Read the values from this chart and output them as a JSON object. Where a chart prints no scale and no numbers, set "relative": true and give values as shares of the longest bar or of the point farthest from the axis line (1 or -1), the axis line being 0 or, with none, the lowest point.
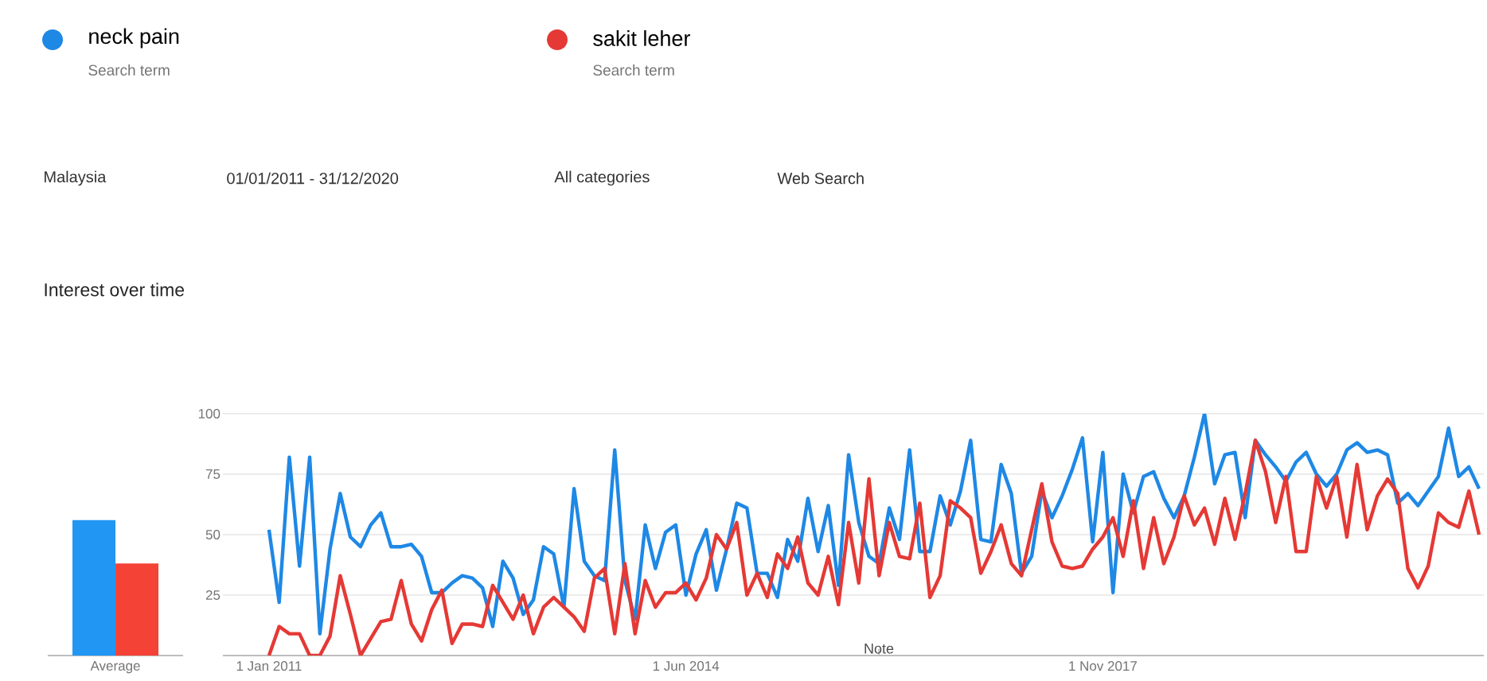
{
  "chart_data": [
    {
      "type": "bar",
      "categories": [
        "Average"
      ],
      "relative": true,
      "series": [
        {
          "color": "#2196f3",
          "values": [
            1
          ]
        },
        {
          "color": "#f44336",
          "values": [
            0.68
          ]
        }
      ]
    },
    {
      "type": "line",
      "title": "Interest over time",
      "legend": "top",
      "grid": "y",
      "marker": "none",
      "line_style": "solid",
      "annotations": [
        "Search term",
        "Search term",
        "Malaysia",
        "01/01/2011 - 31/12/2020",
        "All categories",
        "Web Search",
        "Note"
      ],
      "xlim": [
        "2010-08-15",
        "2020-12-15"
      ],
      "ylim": [
        0,
        100
      ],
      "xticks": [
        {
          "value": "2011-01-01",
          "label": "1 Jan 2011"
        },
        {
          "value": "2014-06-01",
          "label": "1 Jun 2014"
        },
        {
          "value": "2017-11-01",
          "label": "1 Nov 2017"
        }
      ],
      "yticks": [
        25,
        50,
        75,
        100
      ],
      "x": [
        "2011-01",
        "2011-02",
        "2011-03",
        "2011-04",
        "2011-05",
        "2011-06",
        "2011-07",
        "2011-08",
        "2011-09",
        "2011-10",
        "2011-11",
        "2011-12",
        "2012-01",
        "2012-02",
        "2012-03",
        "2012-04",
        "2012-05",
        "2012-06",
        "2012-07",
        "2012-08",
        "2012-09",
        "2012-10",
        "2012-11",
        "2012-12",
        "2013-01",
        "2013-02",
        "2013-03",
        "2013-04",
        "2013-05",
        "2013-06",
        "2013-07",
        "2013-08",
        "2013-09",
        "2013-10",
        "2013-11",
        "2013-12",
        "2014-01",
        "2014-02",
        "2014-03",
        "2014-04",
        "2014-05",
        "2014-06",
        "2014-07",
        "2014-08",
        "2014-09",
        "2014-10",
        "2014-11",
        "2014-12",
        "2015-01",
        "2015-02",
        "2015-03",
        "2015-04",
        "2015-05",
        "2015-06",
        "2015-07",
        "2015-08",
        "2015-09",
        "2015-10",
        "2015-11",
        "2015-12",
        "2016-01",
        "2016-02",
        "2016-03",
        "2016-04",
        "2016-05",
        "2016-06",
        "2016-07",
        "2016-08",
        "2016-09",
        "2016-10",
        "2016-11",
        "2016-12",
        "2017-01",
        "2017-02",
        "2017-03",
        "2017-04",
        "2017-05",
        "2017-06",
        "2017-07",
        "2017-08",
        "2017-09",
        "2017-10",
        "2017-11",
        "2017-12",
        "2018-01",
        "2018-02",
        "2018-03",
        "2018-04",
        "2018-05",
        "2018-06",
        "2018-07",
        "2018-08",
        "2018-09",
        "2018-10",
        "2018-11",
        "2018-12",
        "2019-01",
        "2019-02",
        "2019-03",
        "2019-04",
        "2019-05",
        "2019-06",
        "2019-07",
        "2019-08",
        "2019-09",
        "2019-10",
        "2019-11",
        "2019-12",
        "2020-01",
        "2020-02",
        "2020-03",
        "2020-04",
        "2020-05",
        "2020-06",
        "2020-07",
        "2020-08",
        "2020-09",
        "2020-10",
        "2020-11",
        "2020-12"
      ],
      "series": [
        {
          "name": "neck pain",
          "color": "#1e88e5",
          "values": [
            52,
            22,
            82,
            37,
            82,
            9,
            44,
            67,
            49,
            45,
            54,
            59,
            45,
            45,
            46,
            41,
            26,
            26,
            30,
            33,
            32,
            28,
            12,
            39,
            32,
            17,
            23,
            45,
            42,
            20,
            69,
            39,
            33,
            31,
            85,
            31,
            15,
            54,
            36,
            51,
            54,
            25,
            42,
            52,
            27,
            44,
            63,
            61,
            34,
            34,
            24,
            48,
            39,
            65,
            43,
            62,
            29,
            83,
            55,
            41,
            38,
            61,
            48,
            85,
            43,
            43,
            66,
            54,
            68,
            89,
            48,
            47,
            79,
            67,
            34,
            41,
            68,
            57,
            66,
            77,
            90,
            47,
            84,
            26,
            75,
            59,
            74,
            76,
            65,
            57,
            66,
            82,
            100,
            71,
            83,
            84,
            57,
            89,
            83,
            78,
            72,
            80,
            84,
            75,
            70,
            75,
            85,
            88,
            84,
            85,
            83,
            63,
            67,
            62,
            68,
            74,
            94,
            74,
            78,
            69
          ]
        },
        {
          "name": "sakit leher",
          "color": "#e53935",
          "values": [
            0,
            12,
            9,
            9,
            0,
            0,
            8,
            33,
            17,
            0,
            7,
            14,
            15,
            31,
            13,
            6,
            19,
            27,
            5,
            13,
            13,
            12,
            29,
            22,
            15,
            25,
            9,
            20,
            24,
            20,
            16,
            10,
            32,
            36,
            9,
            38,
            9,
            31,
            20,
            26,
            26,
            30,
            23,
            32,
            50,
            44,
            55,
            25,
            34,
            24,
            42,
            36,
            49,
            30,
            25,
            41,
            21,
            55,
            30,
            73,
            33,
            55,
            41,
            40,
            63,
            24,
            33,
            64,
            61,
            57,
            34,
            43,
            54,
            38,
            33,
            52,
            71,
            47,
            37,
            36,
            37,
            44,
            49,
            57,
            41,
            64,
            36,
            57,
            38,
            49,
            66,
            54,
            61,
            46,
            65,
            48,
            67,
            89,
            76,
            55,
            74,
            43,
            43,
            74,
            61,
            74,
            49,
            79,
            52,
            66,
            73,
            67,
            36,
            28,
            37,
            59,
            55,
            53,
            68,
            50
          ]
        }
      ]
    }
  ]
}
